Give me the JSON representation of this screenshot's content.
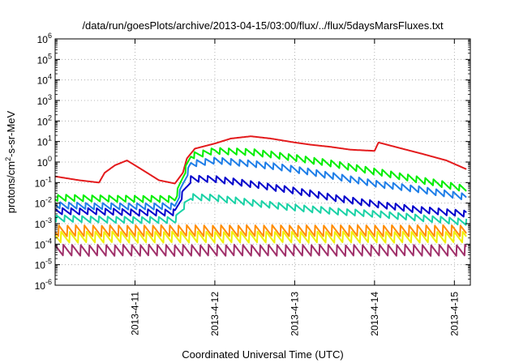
{
  "chart_data": {
    "type": "line",
    "title": "/data/run/goesPlots/archive/2013-04-15/03:00/flux/../flux/5daysMarsFluxes.txt",
    "xlabel": "Coordinated Universal Time (UTC)",
    "ylabel": "protons/cm²-s-sr-MeV",
    "ylabel_parts": {
      "pre": "protons/cm",
      "sup": "2",
      "post": "-s-sr-MeV"
    },
    "yscale": "log",
    "ylim": [
      1e-06,
      1000000.0
    ],
    "xlim": [
      0,
      5.2
    ],
    "grid": true,
    "legend": "none",
    "y_ticks": [
      {
        "base": "10",
        "exp": "6",
        "value": 1000000.0
      },
      {
        "base": "10",
        "exp": "5",
        "value": 100000.0
      },
      {
        "base": "10",
        "exp": "4",
        "value": 10000.0
      },
      {
        "base": "10",
        "exp": "3",
        "value": 1000.0
      },
      {
        "base": "10",
        "exp": "2",
        "value": 100.0
      },
      {
        "base": "10",
        "exp": "1",
        "value": 10.0
      },
      {
        "base": "10",
        "exp": "0",
        "value": 1
      },
      {
        "base": "10",
        "exp": "-1",
        "value": 0.1
      },
      {
        "base": "10",
        "exp": "-2",
        "value": 0.01
      },
      {
        "base": "10",
        "exp": "-3",
        "value": 0.001
      },
      {
        "base": "10",
        "exp": "-4",
        "value": 0.0001
      },
      {
        "base": "10",
        "exp": "-5",
        "value": 1e-05
      },
      {
        "base": "10",
        "exp": "-6",
        "value": 1e-06
      }
    ],
    "x_ticks": [
      {
        "label": "2013-4-11",
        "value": 1
      },
      {
        "label": "2013-4-12",
        "value": 2
      },
      {
        "label": "2013-4-13",
        "value": 3
      },
      {
        "label": "2013-4-14",
        "value": 4
      },
      {
        "label": "2013-4-15",
        "value": 5
      }
    ],
    "series": [
      {
        "color": "#e31a1c",
        "x": [
          0,
          0.3,
          0.55,
          0.62,
          0.75,
          0.9,
          1.1,
          1.3,
          1.5,
          1.6,
          1.65,
          1.75,
          2.0,
          2.2,
          2.45,
          2.7,
          3.0,
          3.2,
          3.45,
          3.7,
          4.0,
          4.05,
          4.3,
          4.6,
          4.9,
          5.15
        ],
        "y": [
          0.2,
          0.13,
          0.1,
          0.3,
          0.7,
          1.2,
          0.4,
          0.13,
          0.09,
          0.3,
          1.5,
          4.5,
          8,
          14,
          18,
          14,
          9,
          7,
          5.5,
          4,
          3.5,
          9,
          5,
          2.5,
          1.2,
          0.45
        ]
      },
      {
        "color": "#00ee00",
        "x": [
          0,
          0.5,
          1.0,
          1.5,
          1.6,
          1.7,
          2.0,
          2.5,
          3.0,
          3.5,
          4.0,
          4.5,
          5.15
        ],
        "y": [
          0.018,
          0.017,
          0.016,
          0.016,
          0.2,
          2,
          3.5,
          3,
          1.6,
          0.8,
          0.35,
          0.15,
          0.05
        ]
      },
      {
        "color": "#1e7ee8",
        "x": [
          0,
          0.5,
          1.0,
          1.5,
          1.6,
          1.7,
          2.0,
          2.5,
          3.0,
          3.5,
          4.0,
          4.5,
          5.15
        ],
        "y": [
          0.008,
          0.007,
          0.007,
          0.007,
          0.08,
          0.8,
          1.2,
          0.8,
          0.45,
          0.2,
          0.09,
          0.05,
          0.02
        ]
      },
      {
        "color": "#0000cc",
        "x": [
          0,
          0.5,
          1.0,
          1.5,
          1.6,
          1.7,
          2.0,
          2.5,
          3.0,
          3.5,
          4.0,
          4.5,
          5.15
        ],
        "y": [
          0.004,
          0.004,
          0.0035,
          0.0035,
          0.03,
          0.15,
          0.15,
          0.08,
          0.04,
          0.018,
          0.009,
          0.005,
          0.003
        ]
      },
      {
        "color": "#1ad2a6",
        "x": [
          0,
          0.5,
          1.0,
          1.5,
          1.6,
          1.7,
          2.0,
          2.5,
          3.0,
          3.5,
          4.0,
          4.5,
          5.15
        ],
        "y": [
          0.0018,
          0.0016,
          0.0015,
          0.0015,
          0.006,
          0.02,
          0.018,
          0.01,
          0.006,
          0.004,
          0.003,
          0.002,
          0.0012
        ]
      },
      {
        "color": "#ff8c00",
        "x": [
          0,
          5.15
        ],
        "y": [
          0.00045,
          0.00045
        ]
      },
      {
        "color": "#f0f000",
        "x": [
          0,
          5.15
        ],
        "y": [
          0.00022,
          0.00022
        ]
      },
      {
        "color": "#a0306a",
        "x": [
          0,
          5.15
        ],
        "y": [
          5e-05,
          5e-05
        ]
      }
    ]
  }
}
